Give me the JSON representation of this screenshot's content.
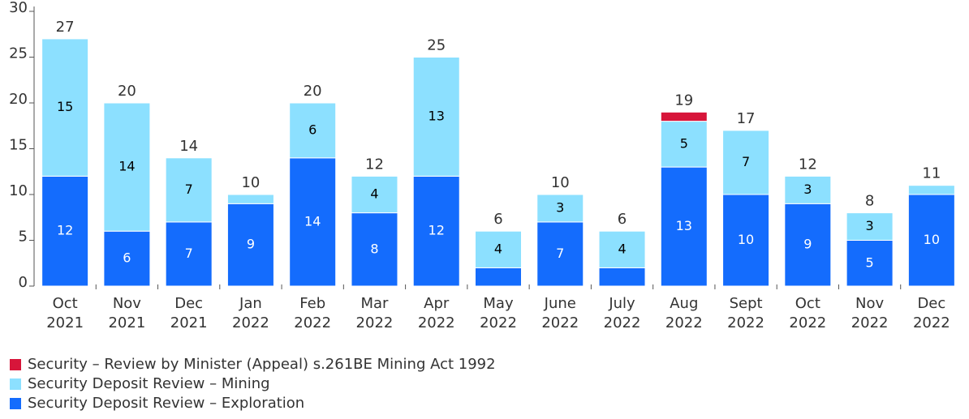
{
  "chart_data": {
    "type": "stacked_bar",
    "categories": [
      [
        "Oct",
        "2021"
      ],
      [
        "Nov",
        "2021"
      ],
      [
        "Dec",
        "2021"
      ],
      [
        "Jan",
        "2022"
      ],
      [
        "Feb",
        "2022"
      ],
      [
        "Mar",
        "2022"
      ],
      [
        "Apr",
        "2022"
      ],
      [
        "May",
        "2022"
      ],
      [
        "June",
        "2022"
      ],
      [
        "July",
        "2022"
      ],
      [
        "Aug",
        "2022"
      ],
      [
        "Sept",
        "2022"
      ],
      [
        "Oct",
        "2022"
      ],
      [
        "Nov",
        "2022"
      ],
      [
        "Dec",
        "2022"
      ]
    ],
    "series": [
      {
        "name": "Security Deposit Review – Exploration",
        "color": "#146cfd",
        "label_color": "#ffffff",
        "values": [
          12,
          6,
          7,
          9,
          14,
          8,
          12,
          2,
          7,
          2,
          13,
          10,
          9,
          5,
          10
        ]
      },
      {
        "name": "Security Deposit Review – Mining",
        "color": "#8ce0ff",
        "label_color": "#000000",
        "values": [
          15,
          14,
          7,
          1,
          6,
          4,
          13,
          4,
          3,
          4,
          5,
          7,
          3,
          3,
          1
        ]
      },
      {
        "name": "Security – Review by Minister (Appeal) s.261BE Mining Act 1992",
        "color": "#d7153a",
        "label_color": "#ffffff",
        "values": [
          null,
          null,
          null,
          null,
          null,
          null,
          null,
          null,
          null,
          null,
          1,
          null,
          null,
          null,
          null
        ]
      }
    ],
    "totals": [
      27,
      20,
      14,
      10,
      20,
      12,
      25,
      6,
      10,
      6,
      19,
      17,
      12,
      8,
      11
    ],
    "ylim": [
      0,
      30
    ],
    "yticks": [
      0,
      5,
      10,
      15,
      20,
      25,
      30
    ]
  }
}
